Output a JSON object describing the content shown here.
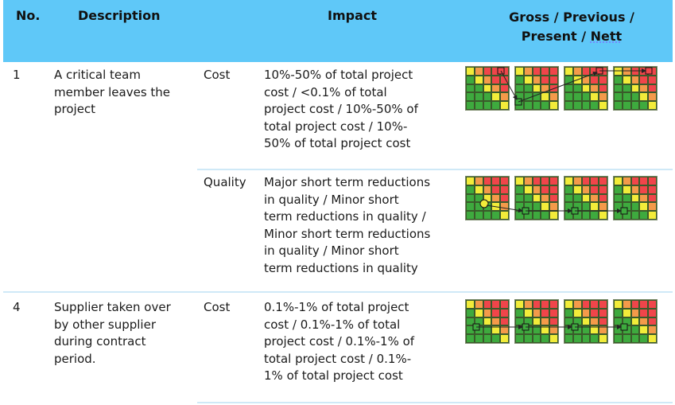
{
  "header": {
    "no": "No.",
    "description": "Description",
    "impact": "Impact",
    "gross_line1": "Gross / Previous /",
    "gross_line2a": "Present / ",
    "gross_line2b": "Nett"
  },
  "rows": [
    {
      "no": "1",
      "description": [
        "A critical team",
        "member leaves the",
        "project"
      ],
      "impacts": [
        {
          "type": "Cost",
          "text": [
            "10%-50% of total project",
            "cost / <0.1% of total",
            "project cost / 10%-50% of",
            "total project cost / 10%-",
            "50% of total project cost"
          ]
        },
        {
          "type": "Quality",
          "text": [
            "Major short term reductions",
            "in quality / Minor short",
            "term reductions in quality /",
            "Minor short term reductions",
            "in quality / Minor short",
            "term reductions in quality"
          ]
        }
      ]
    },
    {
      "no": "4",
      "description": [
        "Supplier taken over",
        "by other supplier",
        "during contract",
        "period."
      ],
      "impacts": [
        {
          "type": "Cost",
          "text": [
            "0.1%-1% of total project",
            "cost / 0.1%-1% of total",
            "project cost / 0.1%-1% of",
            "total project cost / 0.1%-",
            "1% of total project cost"
          ]
        }
      ]
    }
  ],
  "colors": {
    "header_bg": "#5fc8f8",
    "red": "#f0454a",
    "orange": "#f49a4a",
    "yellow": "#f2ec3a",
    "green": "#3eaa3e"
  }
}
